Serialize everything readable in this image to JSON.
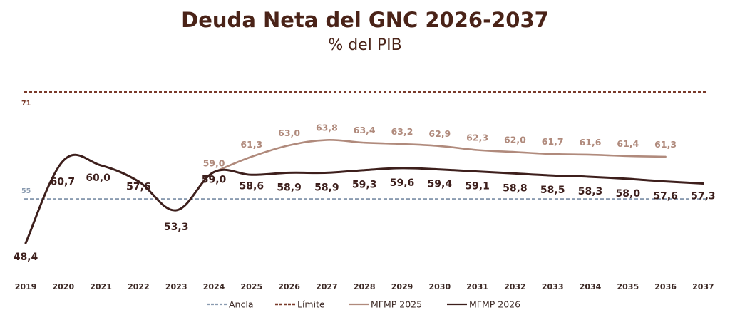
{
  "title": "Deuda Neta del GNC 2026-2037",
  "subtitle": "% del PIB",
  "colors": {
    "title": "#4a2318",
    "mfmp2026": "#3d1f1c",
    "mfmp2025": "#b08a7c",
    "limite": "#7a3a2a",
    "ancla": "#8a9bb0"
  },
  "chart_data": {
    "type": "line",
    "title": "Deuda Neta del GNC 2026-2037",
    "subtitle": "% del PIB",
    "xlabel": "",
    "ylabel": "",
    "ylim": [
      45,
      73
    ],
    "grid": false,
    "legend_position": "bottom",
    "x": [
      "2019",
      "2020",
      "2021",
      "2022",
      "2023",
      "2024",
      "2025",
      "2026",
      "2027",
      "2028",
      "2029",
      "2030",
      "2031",
      "2032",
      "2033",
      "2034",
      "2035",
      "2036",
      "2037"
    ],
    "reference_lines": [
      {
        "name": "Ancla",
        "value": 55,
        "label": "55",
        "style": "dashed"
      },
      {
        "name": "Límite",
        "value": 71,
        "label": "71",
        "style": "dashed"
      }
    ],
    "series": [
      {
        "name": "MFMP 2025",
        "x": [
          "2024",
          "2025",
          "2026",
          "2027",
          "2028",
          "2029",
          "2030",
          "2031",
          "2032",
          "2033",
          "2034",
          "2035",
          "2036"
        ],
        "values": [
          59.0,
          61.3,
          63.0,
          63.8,
          63.4,
          63.2,
          62.9,
          62.3,
          62.0,
          61.7,
          61.6,
          61.4,
          61.3
        ],
        "labels": [
          "59,0",
          "61,3",
          "63,0",
          "63,8",
          "63,4",
          "63,2",
          "62,9",
          "62,3",
          "62,0",
          "61,7",
          "61,6",
          "61,4",
          "61,3"
        ]
      },
      {
        "name": "MFMP 2026",
        "x": [
          "2019",
          "2020",
          "2021",
          "2022",
          "2023",
          "2024",
          "2025",
          "2026",
          "2027",
          "2028",
          "2029",
          "2030",
          "2031",
          "2032",
          "2033",
          "2034",
          "2035",
          "2036",
          "2037"
        ],
        "values": [
          48.4,
          60.7,
          60.0,
          57.6,
          53.3,
          59.0,
          58.6,
          58.9,
          58.9,
          59.3,
          59.6,
          59.4,
          59.1,
          58.8,
          58.5,
          58.3,
          58.0,
          57.6,
          57.3
        ],
        "labels": [
          "48,4",
          "60,7",
          "60,0",
          "57,6",
          "53,3",
          "59,0",
          "58,6",
          "58,9",
          "58,9",
          "59,3",
          "59,6",
          "59,4",
          "59,1",
          "58,8",
          "58,5",
          "58,3",
          "58,0",
          "57,6",
          "57,3"
        ]
      }
    ]
  },
  "legend": [
    {
      "label": "Ancla",
      "key": "ancla"
    },
    {
      "label": "Límite",
      "key": "limite"
    },
    {
      "label": "MFMP 2025",
      "key": "mfmp2025"
    },
    {
      "label": "MFMP 2026",
      "key": "mfmp2026"
    }
  ]
}
